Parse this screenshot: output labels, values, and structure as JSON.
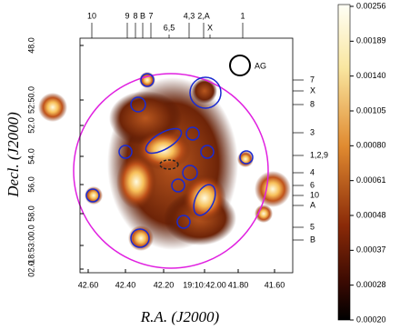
{
  "image": {
    "x_axis_label": "R.A. (J2000)",
    "y_axis_label": "Decl. (J2000)",
    "x_tick_labels": [
      "42.60",
      "42.40",
      "42.20",
      "19:10:42.00",
      "41.80",
      "41.60"
    ],
    "y_tick_labels": [
      "48.0",
      "52:50.0",
      "52.0",
      "54.0",
      "56.0",
      "58.0",
      "-18:53:00.0",
      "02.0"
    ],
    "top_labels": [
      "10",
      "9",
      "8",
      "B",
      "7",
      "6,5",
      "4,3",
      "2,A",
      "X",
      "1"
    ],
    "right_labels": [
      "7",
      "X",
      "8",
      "3",
      "1,2,9",
      "4",
      "6",
      "10",
      "A",
      "5",
      "B"
    ],
    "beam_label": "AG"
  },
  "colorbar": {
    "tick_labels": [
      "0.00256",
      "0.00189",
      "0.00140",
      "0.00105",
      "0.00080",
      "0.00061",
      "0.00048",
      "0.00037",
      "0.00028",
      "0.00020"
    ]
  }
}
